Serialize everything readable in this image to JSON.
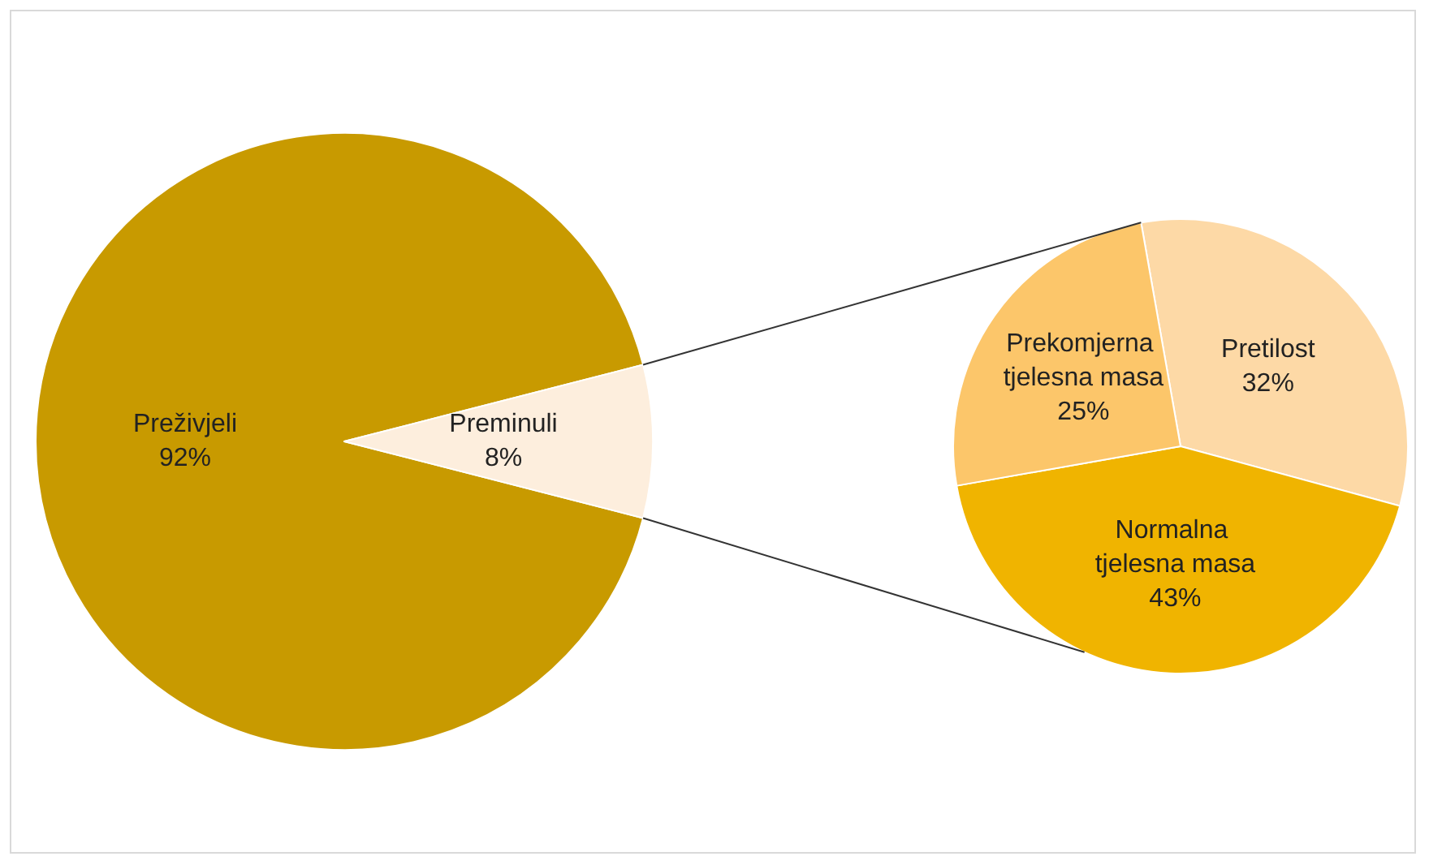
{
  "chart_data": [
    {
      "type": "pie",
      "categories": [
        "Preživjeli",
        "Preminuli"
      ],
      "values": [
        92,
        8
      ],
      "colors": [
        "#c89a00",
        "#fdeedd"
      ],
      "value_labels": [
        "92%",
        "8%"
      ]
    },
    {
      "type": "pie",
      "categories": [
        "Pretilost",
        "Normalna tjelesna masa",
        "Prekomjerna tjelesna masa"
      ],
      "values": [
        32,
        43,
        25
      ],
      "colors": [
        "#fdd9a6",
        "#f0b400",
        "#fcc66a"
      ],
      "value_labels": [
        "32%",
        "43%",
        "25%"
      ]
    }
  ]
}
